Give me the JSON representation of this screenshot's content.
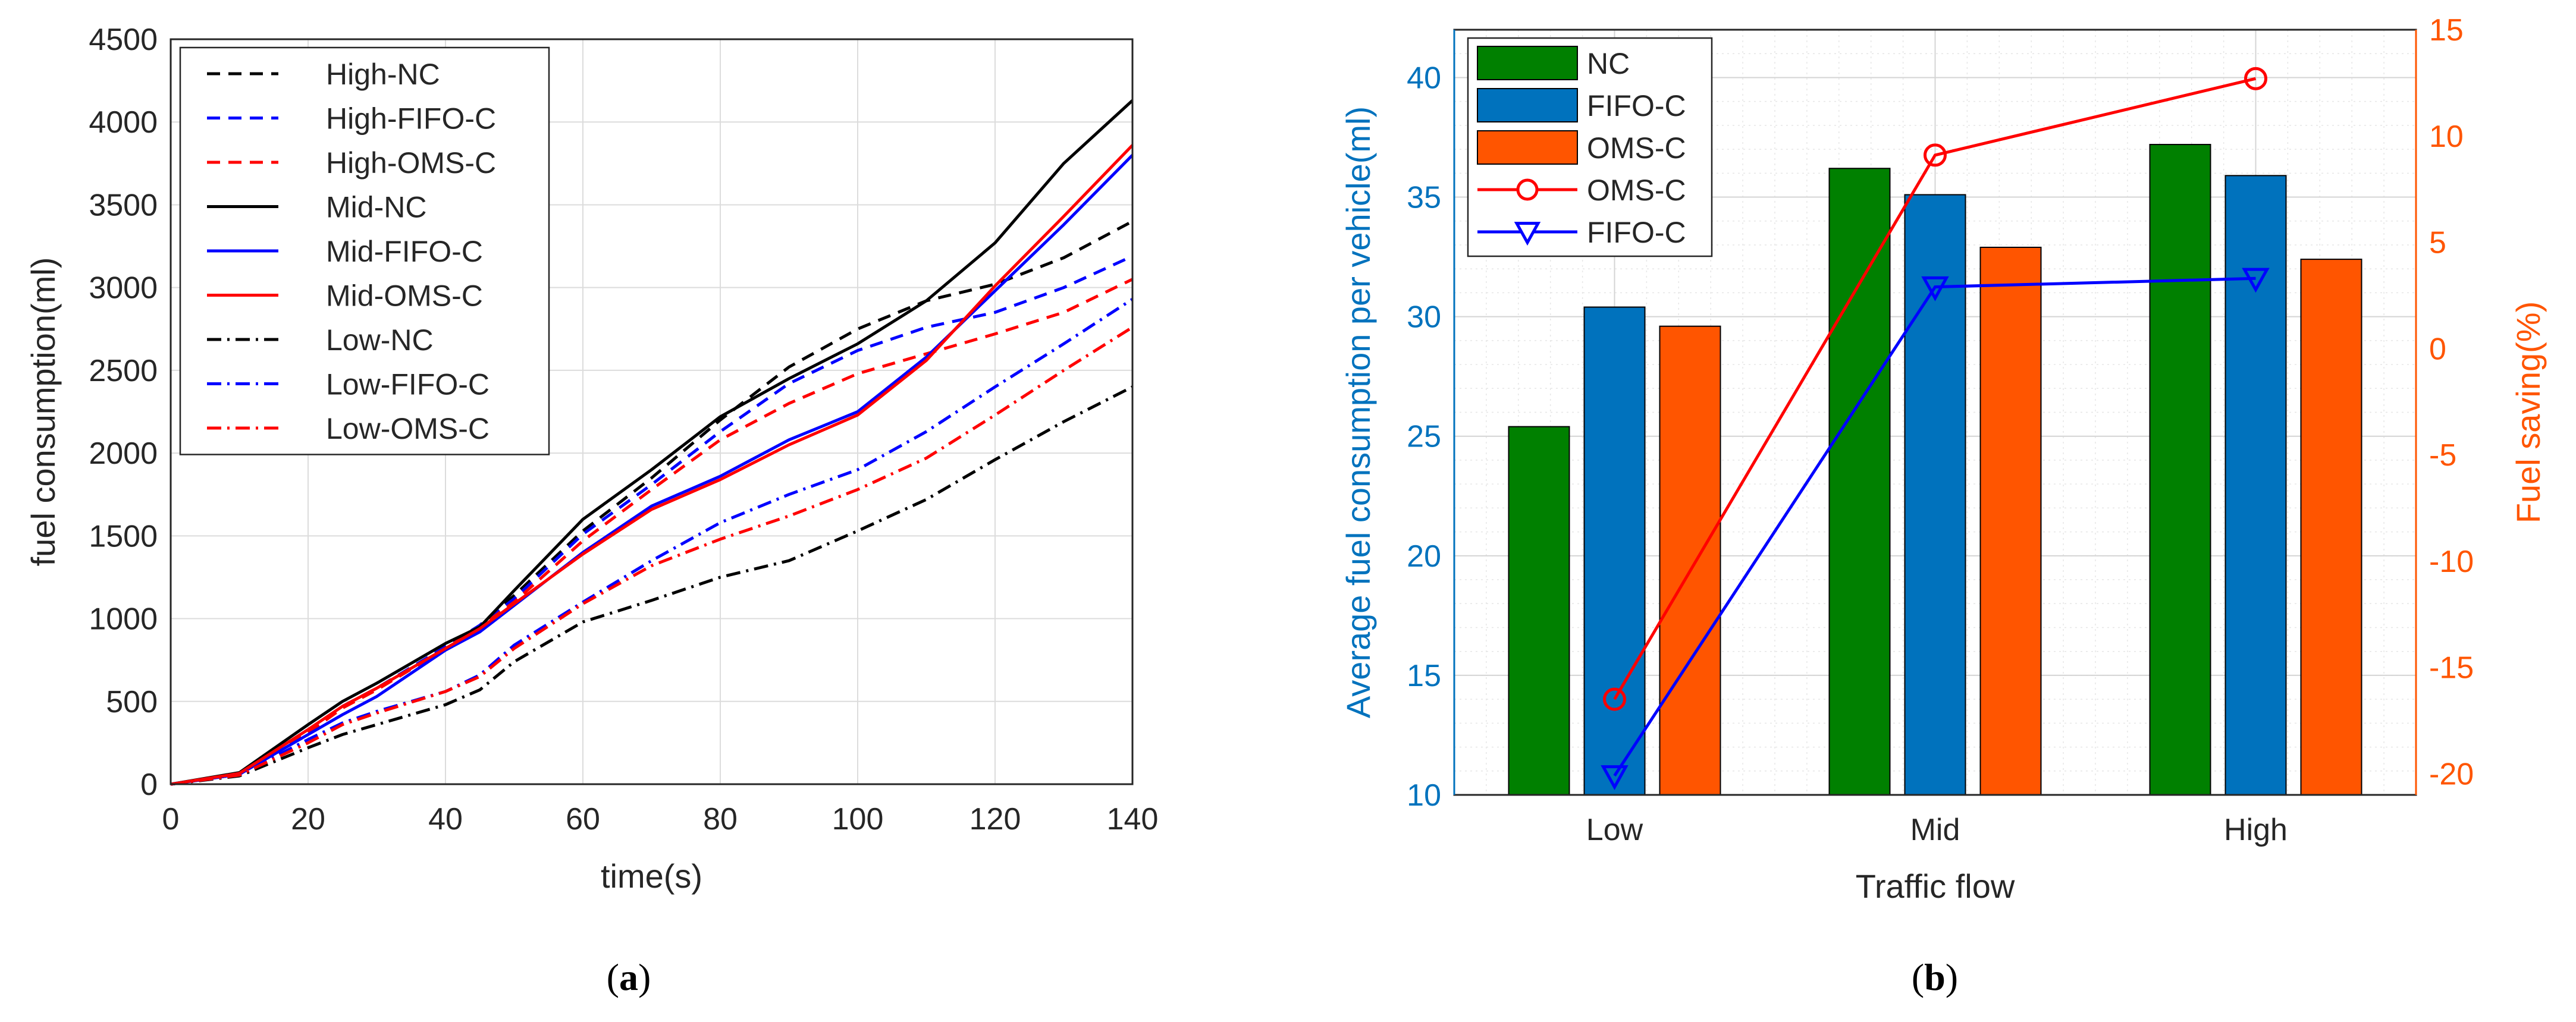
{
  "chart_data": [
    {
      "panel": "a",
      "type": "line",
      "caption": "(a)",
      "caption_letter": "a",
      "xlabel": "time(s)",
      "ylabel": "fuel consumption(ml)",
      "xlim": [
        0,
        140
      ],
      "ylim": [
        0,
        4500
      ],
      "xticks": [
        0,
        20,
        40,
        60,
        80,
        100,
        120,
        140
      ],
      "yticks": [
        0,
        500,
        1000,
        1500,
        2000,
        2500,
        3000,
        3500,
        4000,
        4500
      ],
      "grid": true,
      "legend_position": "top-left",
      "x": [
        0,
        10,
        20,
        25,
        30,
        40,
        45,
        50,
        60,
        70,
        80,
        90,
        100,
        110,
        120,
        130,
        140
      ],
      "series": [
        {
          "name": "High-NC",
          "color": "#000000",
          "dash": "dashed",
          "values": [
            0,
            60,
            320,
            470,
            580,
            830,
            960,
            1140,
            1530,
            1850,
            2200,
            2520,
            2750,
            2920,
            3020,
            3180,
            3400
          ]
        },
        {
          "name": "High-FIFO-C",
          "color": "#0000ff",
          "dash": "dashed",
          "values": [
            0,
            60,
            320,
            470,
            580,
            830,
            960,
            1120,
            1510,
            1810,
            2130,
            2420,
            2620,
            2760,
            2850,
            3000,
            3190
          ]
        },
        {
          "name": "High-OMS-C",
          "color": "#ff0000",
          "dash": "dashed",
          "values": [
            0,
            60,
            310,
            460,
            570,
            820,
            950,
            1100,
            1470,
            1780,
            2080,
            2300,
            2480,
            2600,
            2720,
            2850,
            3050
          ]
        },
        {
          "name": "Mid-NC",
          "color": "#000000",
          "dash": "solid",
          "values": [
            0,
            70,
            360,
            500,
            610,
            850,
            950,
            1170,
            1600,
            1900,
            2220,
            2450,
            2660,
            2920,
            3270,
            3750,
            4130
          ]
        },
        {
          "name": "Mid-FIFO-C",
          "color": "#0000ff",
          "dash": "solid",
          "values": [
            0,
            60,
            300,
            420,
            530,
            810,
            920,
            1080,
            1400,
            1680,
            1860,
            2080,
            2250,
            2580,
            2980,
            3380,
            3800
          ]
        },
        {
          "name": "Mid-OMS-C",
          "color": "#ff0000",
          "dash": "solid",
          "values": [
            0,
            65,
            330,
            470,
            580,
            820,
            940,
            1090,
            1390,
            1660,
            1840,
            2050,
            2230,
            2560,
            3010,
            3430,
            3860
          ]
        },
        {
          "name": "Low-NC",
          "color": "#000000",
          "dash": "dashdot",
          "values": [
            0,
            50,
            220,
            300,
            360,
            480,
            570,
            740,
            980,
            1110,
            1250,
            1350,
            1530,
            1720,
            1960,
            2190,
            2400
          ]
        },
        {
          "name": "Low-FIFO-C",
          "color": "#0000ff",
          "dash": "dashdot",
          "values": [
            0,
            55,
            270,
            370,
            440,
            560,
            660,
            840,
            1100,
            1350,
            1580,
            1750,
            1900,
            2130,
            2400,
            2660,
            2930
          ]
        },
        {
          "name": "Low-OMS-C",
          "color": "#ff0000",
          "dash": "dashdot",
          "values": [
            0,
            55,
            250,
            360,
            430,
            560,
            650,
            820,
            1090,
            1320,
            1480,
            1620,
            1780,
            1970,
            2230,
            2500,
            2760
          ]
        }
      ]
    },
    {
      "panel": "b",
      "type": "bar",
      "caption": "(b)",
      "caption_letter": "b",
      "xlabel": "Traffic flow",
      "ylabel": "Average fuel consumption per vehicle(ml)",
      "ylabel_right": "Fuel saving(%)",
      "categories": [
        "Low",
        "Mid",
        "High"
      ],
      "ylim": [
        10,
        42
      ],
      "yticks": [
        10,
        15,
        20,
        25,
        30,
        35,
        40
      ],
      "ylim_right": [
        -21,
        15
      ],
      "yticks_right": [
        -20,
        -15,
        -10,
        -5,
        0,
        5,
        10,
        15
      ],
      "grid": true,
      "legend_position": "top-left",
      "left_axis_color": "#0072bd",
      "right_axis_color": "#ff5500",
      "series": [
        {
          "name": "NC",
          "color": "#008000",
          "values": [
            25.4,
            36.2,
            37.2
          ]
        },
        {
          "name": "FIFO-C",
          "color": "#0072bd",
          "values": [
            30.4,
            35.1,
            35.9
          ]
        },
        {
          "name": "OMS-C",
          "color": "#ff5500",
          "values": [
            29.6,
            32.9,
            32.4
          ]
        }
      ],
      "line_series": [
        {
          "name": "OMS-C",
          "color": "#ff0000",
          "marker": "circle",
          "axis": "right",
          "values": [
            -16.5,
            9.1,
            12.7
          ]
        },
        {
          "name": "FIFO-C",
          "color": "#0000ff",
          "marker": "triangle-down",
          "axis": "right",
          "values": [
            -20.1,
            2.9,
            3.3
          ]
        }
      ]
    }
  ]
}
